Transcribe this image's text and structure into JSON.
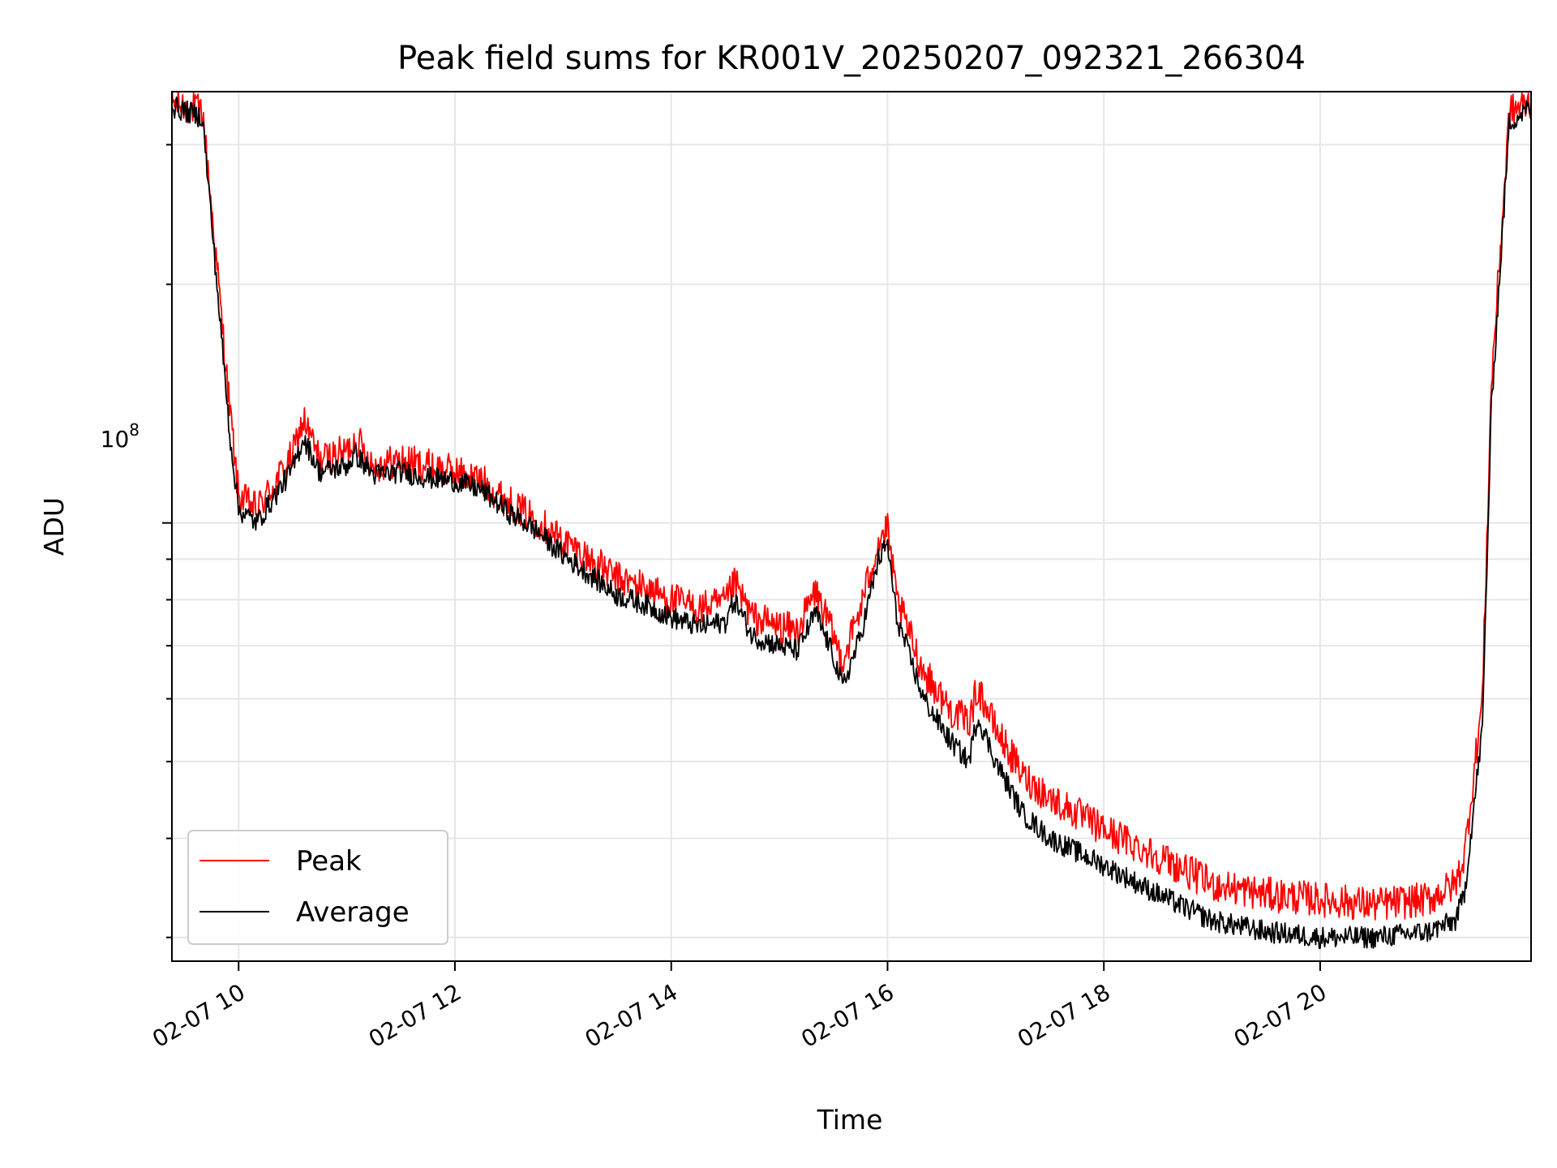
{
  "chart_data": {
    "type": "line",
    "title": "Peak field sums for KR001V_20250207_092321_266304",
    "xlabel": "Time",
    "ylabel": "ADU",
    "yscale": "log",
    "xlim": [
      "2025-02-07T09:23",
      "2025-02-07T21:57"
    ],
    "ylim": [
      28000000,
      350000000
    ],
    "x_ticks": [
      "02-07 10",
      "02-07 12",
      "02-07 14",
      "02-07 16",
      "02-07 18",
      "02-07 20"
    ],
    "y_tick_major": {
      "value": 100000000,
      "base": "10",
      "exponent": "8"
    },
    "grid": true,
    "legend": {
      "position": "lower-left",
      "entries": [
        "Peak",
        "Average"
      ]
    },
    "series": [
      {
        "name": "Peak",
        "color": "#ff0000",
        "x": [
          "2025-02-07T09:23",
          "2025-02-07T09:40",
          "2025-02-07T09:45",
          "2025-02-07T09:55",
          "2025-02-07T10:00",
          "2025-02-07T10:10",
          "2025-02-07T10:20",
          "2025-02-07T10:30",
          "2025-02-07T10:36",
          "2025-02-07T10:45",
          "2025-02-07T11:00",
          "2025-02-07T11:05",
          "2025-02-07T11:15",
          "2025-02-07T11:30",
          "2025-02-07T11:45",
          "2025-02-07T12:00",
          "2025-02-07T12:15",
          "2025-02-07T12:30",
          "2025-02-07T12:45",
          "2025-02-07T13:00",
          "2025-02-07T13:15",
          "2025-02-07T13:30",
          "2025-02-07T13:45",
          "2025-02-07T14:00",
          "2025-02-07T14:15",
          "2025-02-07T14:30",
          "2025-02-07T14:35",
          "2025-02-07T14:45",
          "2025-02-07T15:00",
          "2025-02-07T15:10",
          "2025-02-07T15:20",
          "2025-02-07T15:30",
          "2025-02-07T15:35",
          "2025-02-07T15:45",
          "2025-02-07T15:55",
          "2025-02-07T16:00",
          "2025-02-07T16:05",
          "2025-02-07T16:20",
          "2025-02-07T16:35",
          "2025-02-07T16:45",
          "2025-02-07T16:50",
          "2025-02-07T17:00",
          "2025-02-07T17:15",
          "2025-02-07T17:30",
          "2025-02-07T18:00",
          "2025-02-07T18:30",
          "2025-02-07T19:00",
          "2025-02-07T19:30",
          "2025-02-07T20:00",
          "2025-02-07T20:30",
          "2025-02-07T21:00",
          "2025-02-07T21:15",
          "2025-02-07T21:20",
          "2025-02-07T21:30",
          "2025-02-07T21:35",
          "2025-02-07T21:45",
          "2025-02-07T21:57"
        ],
        "values": [
          340000000,
          330000000,
          250000000,
          140000000,
          108000000,
          104000000,
          112000000,
          122000000,
          135000000,
          120000000,
          123000000,
          128000000,
          118000000,
          120000000,
          118000000,
          116000000,
          113000000,
          106000000,
          101000000,
          95000000,
          90000000,
          85000000,
          83000000,
          80000000,
          78000000,
          79000000,
          84000000,
          76000000,
          74000000,
          73000000,
          82000000,
          72000000,
          67000000,
          78000000,
          95000000,
          98000000,
          80000000,
          65000000,
          58000000,
          56000000,
          62000000,
          55000000,
          48000000,
          45000000,
          41000000,
          38000000,
          35000000,
          34000000,
          33500000,
          33000000,
          33500000,
          35000000,
          38000000,
          60000000,
          150000000,
          330000000,
          340000000
        ]
      },
      {
        "name": "Average",
        "color": "#000000",
        "x": [
          "2025-02-07T09:23",
          "2025-02-07T09:40",
          "2025-02-07T09:45",
          "2025-02-07T09:55",
          "2025-02-07T10:00",
          "2025-02-07T10:10",
          "2025-02-07T10:20",
          "2025-02-07T10:30",
          "2025-02-07T10:36",
          "2025-02-07T10:45",
          "2025-02-07T11:00",
          "2025-02-07T11:05",
          "2025-02-07T11:15",
          "2025-02-07T11:30",
          "2025-02-07T11:45",
          "2025-02-07T12:00",
          "2025-02-07T12:15",
          "2025-02-07T12:30",
          "2025-02-07T12:45",
          "2025-02-07T13:00",
          "2025-02-07T13:15",
          "2025-02-07T13:30",
          "2025-02-07T13:45",
          "2025-02-07T14:00",
          "2025-02-07T14:15",
          "2025-02-07T14:30",
          "2025-02-07T14:35",
          "2025-02-07T14:45",
          "2025-02-07T15:00",
          "2025-02-07T15:10",
          "2025-02-07T15:20",
          "2025-02-07T15:30",
          "2025-02-07T15:35",
          "2025-02-07T15:45",
          "2025-02-07T15:55",
          "2025-02-07T16:00",
          "2025-02-07T16:05",
          "2025-02-07T16:20",
          "2025-02-07T16:35",
          "2025-02-07T16:45",
          "2025-02-07T16:50",
          "2025-02-07T17:00",
          "2025-02-07T17:15",
          "2025-02-07T17:30",
          "2025-02-07T18:00",
          "2025-02-07T18:30",
          "2025-02-07T19:00",
          "2025-02-07T19:30",
          "2025-02-07T20:00",
          "2025-02-07T20:30",
          "2025-02-07T21:00",
          "2025-02-07T21:15",
          "2025-02-07T21:20",
          "2025-02-07T21:30",
          "2025-02-07T21:35",
          "2025-02-07T21:45",
          "2025-02-07T21:57"
        ],
        "values": [
          335000000,
          325000000,
          240000000,
          130000000,
          104000000,
          100000000,
          108000000,
          117000000,
          128000000,
          116000000,
          118000000,
          122000000,
          115000000,
          116000000,
          114000000,
          113000000,
          110000000,
          103000000,
          98000000,
          91000000,
          86000000,
          81000000,
          79000000,
          76000000,
          74000000,
          75000000,
          80000000,
          72000000,
          70000000,
          69000000,
          77000000,
          68000000,
          62000000,
          72000000,
          90000000,
          94000000,
          76000000,
          60000000,
          53000000,
          50000000,
          57000000,
          50000000,
          43000000,
          40000000,
          37000000,
          34000000,
          31500000,
          30500000,
          30000000,
          30000000,
          30500000,
          31500000,
          34000000,
          55000000,
          140000000,
          320000000,
          335000000
        ]
      }
    ]
  }
}
